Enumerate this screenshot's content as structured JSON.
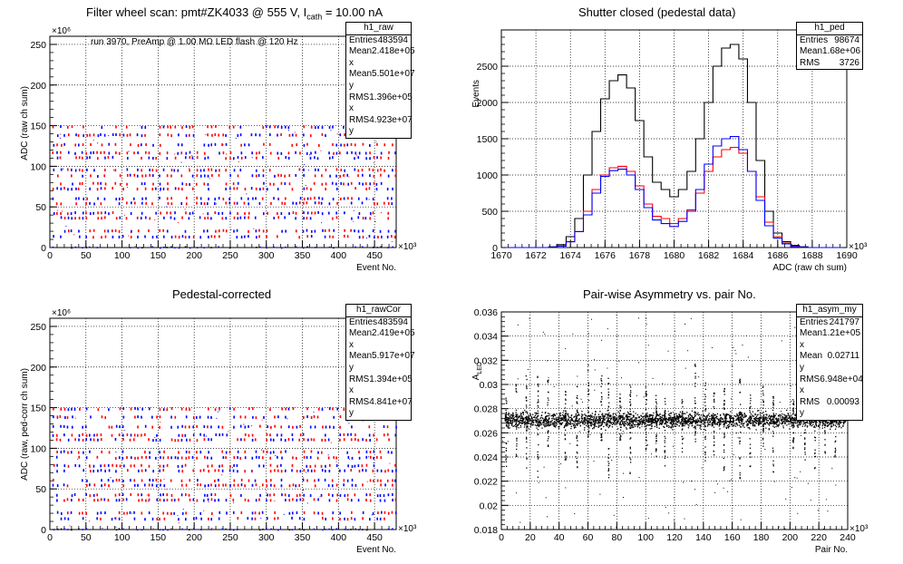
{
  "chart_data": [
    {
      "type": "scatter",
      "title": "Filter wheel scan: pmt#ZK4033 @   555 V, I",
      "title_sub": "cath",
      "title_tail": " = 10.00 nA",
      "annotation": "run 3970, PreAmp @ 1.00 MΩ LED flash @  120 Hz",
      "xlabel": "Event No.",
      "ylabel": "ADC (raw ch sum)",
      "xlim": [
        0,
        480
      ],
      "ylim": [
        0,
        260
      ],
      "x_exponent": "×10³",
      "y_exponent": "×10⁶",
      "x_ticks": [
        "0",
        "50",
        "100",
        "150",
        "200",
        "250",
        "300",
        "350",
        "400",
        "450"
      ],
      "y_ticks": [
        "0",
        "50",
        "100",
        "150",
        "200",
        "250"
      ],
      "grid": true,
      "stats": {
        "name": "h1_raw",
        "rows": [
          [
            "Entries",
            "483594"
          ],
          [
            "Mean x",
            "2.418e+05"
          ],
          [
            "Mean y",
            "5.501e+07"
          ],
          [
            "RMS x",
            "1.396e+05"
          ],
          [
            "RMS y",
            "4.923e+07"
          ]
        ]
      },
      "levels": [
        1,
        15,
        22,
        38,
        44,
        56,
        62,
        74,
        80,
        90,
        97,
        112,
        118,
        128,
        140,
        150
      ],
      "series_colors": {
        "red": "#ff0000",
        "blue": "#0000ff",
        "black": "#000000"
      }
    },
    {
      "type": "line",
      "title": "Shutter closed (pedestal data)",
      "xlabel": "ADC (raw ch sum)",
      "ylabel": "Events",
      "xlim": [
        1670,
        1690
      ],
      "ylim": [
        0,
        3000
      ],
      "x_exponent": "×10³",
      "x_ticks": [
        "1670",
        "1672",
        "1674",
        "1676",
        "1678",
        "1680",
        "1682",
        "1684",
        "1686",
        "1688",
        "1690"
      ],
      "y_ticks": [
        "0",
        "500",
        "1000",
        "1500",
        "2000",
        "2500"
      ],
      "grid": true,
      "stats": {
        "name": "h1_ped",
        "rows": [
          [
            "Entries",
            "98674"
          ],
          [
            "Mean",
            "1.68e+06"
          ],
          [
            "RMS",
            "3726"
          ]
        ]
      },
      "x": [
        1670.5,
        1671,
        1671.5,
        1672,
        1672.5,
        1673,
        1673.5,
        1674,
        1674.5,
        1675,
        1675.5,
        1676,
        1676.5,
        1677,
        1677.5,
        1678,
        1678.5,
        1679,
        1679.5,
        1680,
        1680.5,
        1681,
        1681.5,
        1682,
        1682.5,
        1683,
        1683.5,
        1684,
        1684.5,
        1685,
        1685.5,
        1686,
        1686.5,
        1687,
        1687.5,
        1688,
        1688.5,
        1689,
        1689.5
      ],
      "series": [
        {
          "color": "#000000",
          "values": [
            0,
            0,
            0,
            0,
            0,
            10,
            40,
            150,
            400,
            1000,
            1600,
            2050,
            2300,
            2380,
            2200,
            1750,
            1250,
            900,
            800,
            700,
            800,
            1050,
            1500,
            2000,
            2500,
            2750,
            2800,
            2600,
            2000,
            1200,
            500,
            200,
            80,
            30,
            10,
            0,
            0,
            0,
            0
          ]
        },
        {
          "color": "#ff0000",
          "values": [
            0,
            0,
            0,
            0,
            0,
            5,
            20,
            80,
            220,
            500,
            800,
            1000,
            1100,
            1120,
            1050,
            850,
            600,
            430,
            400,
            330,
            400,
            520,
            750,
            1050,
            1250,
            1350,
            1380,
            1300,
            1050,
            700,
            350,
            150,
            60,
            20,
            5,
            0,
            0,
            0,
            0
          ]
        },
        {
          "color": "#0000ff",
          "values": [
            0,
            0,
            0,
            0,
            0,
            5,
            20,
            80,
            220,
            450,
            750,
            980,
            1060,
            1080,
            1000,
            800,
            550,
            380,
            330,
            290,
            360,
            500,
            800,
            1150,
            1400,
            1500,
            1530,
            1350,
            1050,
            650,
            300,
            130,
            50,
            15,
            5,
            0,
            0,
            0,
            0
          ]
        }
      ]
    },
    {
      "type": "scatter",
      "title": "Pedestal-corrected",
      "xlabel": "Event No.",
      "ylabel": "ADC (raw, ped-corr ch sum)",
      "xlim": [
        0,
        480
      ],
      "ylim": [
        0,
        260
      ],
      "x_exponent": "×10³",
      "y_exponent": "×10⁶",
      "x_ticks": [
        "0",
        "50",
        "100",
        "150",
        "200",
        "250",
        "300",
        "350",
        "400",
        "450"
      ],
      "y_ticks": [
        "0",
        "50",
        "100",
        "150",
        "200",
        "250"
      ],
      "grid": true,
      "stats": {
        "name": "h1_rawCor",
        "rows": [
          [
            "Entries",
            "483594"
          ],
          [
            "Mean x",
            "2.419e+05"
          ],
          [
            "Mean y",
            "5.917e+07"
          ],
          [
            "RMS x",
            "1.394e+05"
          ],
          [
            "RMS y",
            "4.841e+07"
          ]
        ]
      },
      "levels": [
        1,
        15,
        22,
        38,
        44,
        56,
        62,
        74,
        80,
        90,
        97,
        112,
        118,
        128,
        140,
        150
      ],
      "series_colors": {
        "red": "#ff0000",
        "blue": "#0000ff",
        "black": "#000000"
      }
    },
    {
      "type": "scatter",
      "title": "Pair-wise Asymmetry vs. pair No.",
      "xlabel": "Pair No.",
      "ylabel": "A",
      "ylabel_sub": "LED",
      "xlim": [
        0,
        240
      ],
      "ylim": [
        0.018,
        0.036
      ],
      "x_exponent": "×10³",
      "x_ticks": [
        "0",
        "20",
        "40",
        "60",
        "80",
        "100",
        "120",
        "140",
        "160",
        "180",
        "200",
        "220",
        "240"
      ],
      "y_ticks": [
        "0.018",
        "0.02",
        "0.022",
        "0.024",
        "0.026",
        "0.028",
        "0.03",
        "0.032",
        "0.034",
        "0.036"
      ],
      "grid": true,
      "stats": {
        "name": "h1_asym_my",
        "rows": [
          [
            "Entries",
            "241797"
          ],
          [
            "Mean x",
            "1.21e+05"
          ],
          [
            "Mean y",
            "0.02711"
          ],
          [
            "RMS x",
            "6.948e+04"
          ],
          [
            "RMS y",
            "0.00093"
          ]
        ]
      },
      "band_center": 0.0271,
      "spike_x": [
        3,
        10,
        17,
        25,
        32,
        44,
        52,
        60,
        69,
        74,
        82,
        89,
        100,
        107,
        113,
        125,
        134,
        141,
        147,
        154,
        165,
        172,
        181,
        188,
        202,
        210,
        217,
        224,
        231
      ]
    }
  ]
}
